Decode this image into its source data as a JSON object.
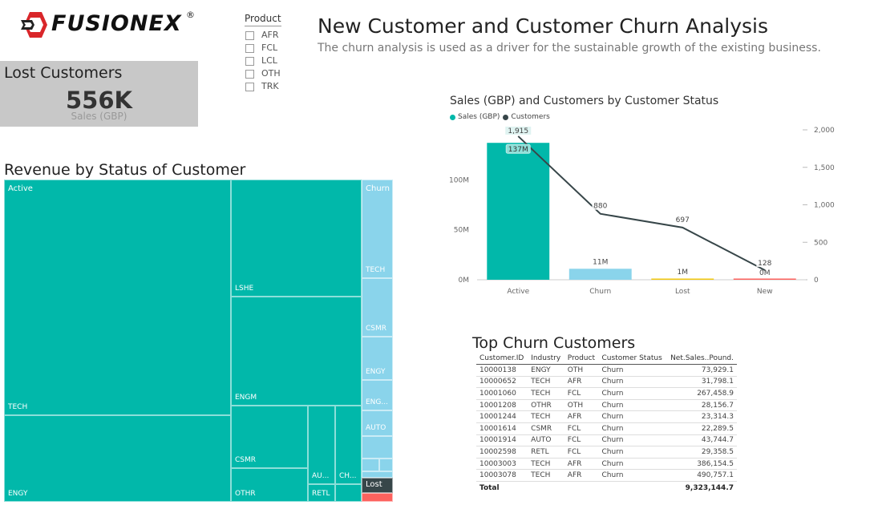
{
  "logo": {
    "text": "FUSIONEX",
    "reg": "®"
  },
  "slicer": {
    "title": "Product",
    "items": [
      "AFR",
      "FCL",
      "LCL",
      "OTH",
      "TRK"
    ]
  },
  "header": {
    "title": "New Customer and Customer Churn Analysis",
    "subtitle": "The churn analysis is used as a driver for the sustainable growth of the existing business."
  },
  "kpi": {
    "title": "Lost Customers",
    "value": "556K",
    "label": "Sales (GBP)"
  },
  "treemap": {
    "title": "Revenue by Status of Customer",
    "colors": {
      "Active": "#01b8aa",
      "Churn": "#8ad4eb",
      "Lost": "#374649",
      "New": "#fd625e"
    },
    "labels": {
      "active": "Active",
      "tech": "TECH",
      "engy": "ENGY",
      "lshe": "LSHE",
      "engm": "ENGM",
      "csmr": "CSMR",
      "othr": "OTHR",
      "au": "AU...",
      "ch": "CH...",
      "retl": "RETL",
      "churn": "Churn",
      "c_tech": "TECH",
      "c_csmr": "CSMR",
      "c_engy": "ENGY",
      "c_eng": "ENG...",
      "c_auto": "AUTO",
      "lost": "Lost"
    }
  },
  "chart_data": {
    "type": "bar",
    "title": "Sales (GBP) and Customers by Customer Status",
    "categories": [
      "Active",
      "Churn",
      "Lost",
      "New"
    ],
    "series": [
      {
        "name": "Sales (GBP)",
        "type": "bar",
        "values": [
          137,
          11,
          1,
          0
        ],
        "labels": [
          "137M",
          "11M",
          "1M",
          "0M"
        ],
        "colors": [
          "#01b8aa",
          "#8ad4eb",
          "#f2c80f",
          "#fd625e"
        ],
        "axis": "left",
        "unit": "M"
      },
      {
        "name": "Customers",
        "type": "line",
        "values": [
          1915,
          880,
          697,
          128
        ],
        "labels": [
          "1,915",
          "880",
          "697",
          "128"
        ],
        "color": "#374649",
        "axis": "right"
      }
    ],
    "ylim_left": [
      0,
      150
    ],
    "left_ticks": [
      "0M",
      "50M",
      "100M"
    ],
    "left_tick_values": [
      0,
      50,
      100
    ],
    "ylim_right": [
      0,
      2000
    ],
    "right_ticks": [
      "0",
      "500",
      "1,000",
      "1,500",
      "2,000"
    ],
    "right_tick_values": [
      0,
      500,
      1000,
      1500,
      2000
    ],
    "legend_position": "top-left"
  },
  "table": {
    "title": "Top Churn Customers",
    "columns": [
      "Customer.ID",
      "Industry",
      "Product",
      "Customer Status",
      "Net.Sales..Pound."
    ],
    "rows": [
      [
        "10000138",
        "ENGY",
        "OTH",
        "Churn",
        "73,929.1"
      ],
      [
        "10000652",
        "TECH",
        "AFR",
        "Churn",
        "31,798.1"
      ],
      [
        "10001060",
        "TECH",
        "FCL",
        "Churn",
        "267,458.9"
      ],
      [
        "10001208",
        "OTHR",
        "OTH",
        "Churn",
        "28,156.7"
      ],
      [
        "10001244",
        "TECH",
        "AFR",
        "Churn",
        "23,314.3"
      ],
      [
        "10001614",
        "CSMR",
        "FCL",
        "Churn",
        "22,289.5"
      ],
      [
        "10001914",
        "AUTO",
        "FCL",
        "Churn",
        "43,744.7"
      ],
      [
        "10002598",
        "RETL",
        "FCL",
        "Churn",
        "29,358.5"
      ],
      [
        "10003003",
        "TECH",
        "AFR",
        "Churn",
        "386,154.5"
      ],
      [
        "10003078",
        "TECH",
        "AFR",
        "Churn",
        "490,757.1"
      ]
    ],
    "total_label": "Total",
    "total_value": "9,323,144.7"
  }
}
